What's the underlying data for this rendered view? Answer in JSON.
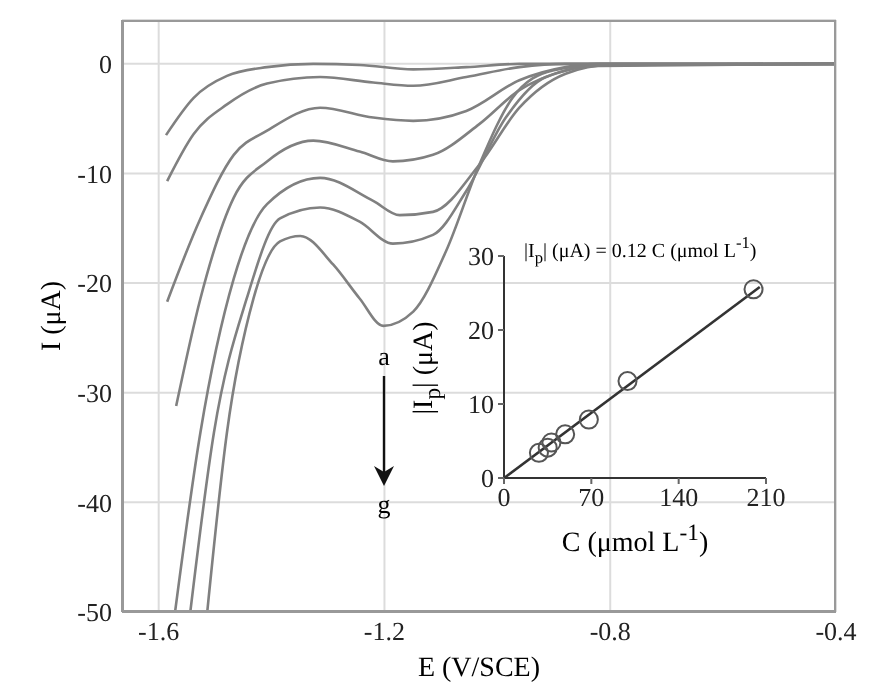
{
  "chart_data": [
    {
      "type": "line",
      "xlabel": "E (V/SCE)",
      "ylabel": "I (μA)",
      "xlim": [
        -1.665,
        -0.4
      ],
      "xticks": [
        -1.6,
        -1.2,
        -0.8,
        -0.4
      ],
      "ylim": [
        -50,
        4
      ],
      "yticks": [
        0,
        -10,
        -20,
        -30,
        -40,
        -50
      ],
      "grid": true,
      "marker": "none",
      "line_style": "solid",
      "annotations": [
        "a",
        "g"
      ],
      "series": [
        {
          "color": "#808080",
          "x": [
            -1.587,
            -1.538,
            -1.479,
            -1.408,
            -1.326,
            -1.244,
            -1.149,
            -1.055,
            -0.961,
            -0.4
          ],
          "values": [
            -6.5,
            -3.1,
            -1.1,
            -0.3,
            0,
            -0.1,
            -0.5,
            -0.3,
            0,
            0
          ]
        },
        {
          "color": "#808080",
          "x": [
            -1.585,
            -1.538,
            -1.479,
            -1.408,
            -1.314,
            -1.22,
            -1.149,
            -1.055,
            -0.961,
            -0.879,
            -0.4
          ],
          "values": [
            -10.7,
            -6.4,
            -3.7,
            -1.8,
            -1.2,
            -1.7,
            -2.0,
            -1.2,
            -0.3,
            0,
            0
          ]
        },
        {
          "color": "#808080",
          "x": [
            -1.585,
            -1.526,
            -1.467,
            -1.408,
            -1.314,
            -1.22,
            -1.149,
            -1.055,
            -0.961,
            -0.879,
            -0.82,
            -0.4
          ],
          "values": [
            -21.7,
            -14.1,
            -8.3,
            -6.1,
            -4.0,
            -4.9,
            -5.2,
            -4.3,
            -1.5,
            -0.3,
            0,
            0
          ]
        },
        {
          "color": "#808080",
          "x": [
            -1.569,
            -1.526,
            -1.467,
            -1.408,
            -1.326,
            -1.244,
            -1.185,
            -1.114,
            -1.032,
            -0.961,
            -0.879,
            -0.82,
            -0.4
          ],
          "values": [
            -31.2,
            -21.4,
            -12.2,
            -8.9,
            -7.0,
            -8.0,
            -8.9,
            -8.3,
            -5.5,
            -2.4,
            -0.6,
            -0.1,
            0
          ]
        },
        {
          "color": "#808080",
          "x": [
            -1.571,
            -1.526,
            -1.467,
            -1.408,
            -1.314,
            -1.22,
            -1.173,
            -1.114,
            -1.032,
            -0.961,
            -0.879,
            -0.8,
            -0.4
          ],
          "values": [
            -50,
            -33.6,
            -19.6,
            -12.8,
            -10.4,
            -12.5,
            -13.8,
            -13.5,
            -9.2,
            -4.0,
            -0.9,
            -0.1,
            0
          ]
        },
        {
          "color": "#808080",
          "x": [
            -1.544,
            -1.502,
            -1.444,
            -1.385,
            -1.314,
            -1.244,
            -1.185,
            -1.114,
            -1.055,
            -0.985,
            -0.914,
            -0.82,
            -0.4
          ],
          "values": [
            -50,
            -33.6,
            -21.4,
            -14.1,
            -13.1,
            -14.4,
            -16.4,
            -15.6,
            -11.6,
            -4.9,
            -1.2,
            -0.2,
            0
          ]
        },
        {
          "color": "#808080",
          "x": [
            -1.514,
            -1.479,
            -1.432,
            -1.385,
            -1.349,
            -1.291,
            -1.244,
            -1.202,
            -1.149,
            -1.091,
            -1.032,
            -0.973,
            -0.902,
            -0.82,
            -0.4
          ],
          "values": [
            -50,
            -33.6,
            -21.4,
            -16.2,
            -15.7,
            -18.3,
            -21.4,
            -23.9,
            -22.6,
            -17.1,
            -9.2,
            -3.1,
            -0.6,
            -0.1,
            0
          ]
        }
      ]
    },
    {
      "type": "scatter",
      "xlabel": "C (μmol L$^{-1}$)",
      "ylabel": "|I$_{p}$| (μA)",
      "xlim": [
        0,
        210
      ],
      "xticks": [
        0,
        70,
        140,
        210
      ],
      "ylim": [
        0,
        30
      ],
      "yticks": [
        0,
        10,
        20,
        30
      ],
      "grid": false,
      "marker": "circle",
      "annotations": [
        "|I$_{p}$| (μA) = 0.12 C (μmol L$^{-1}$)"
      ],
      "series": [
        {
          "color": "#555555",
          "x": [
            28,
            35,
            38,
            49,
            68,
            99,
            200
          ],
          "values": [
            3.4,
            4.1,
            4.8,
            5.9,
            7.9,
            13.1,
            25.5
          ]
        },
        {
          "type": "line",
          "marker": "none",
          "color": "#333333",
          "x": [
            0,
            205
          ],
          "values": [
            0,
            25.8
          ]
        }
      ]
    }
  ]
}
